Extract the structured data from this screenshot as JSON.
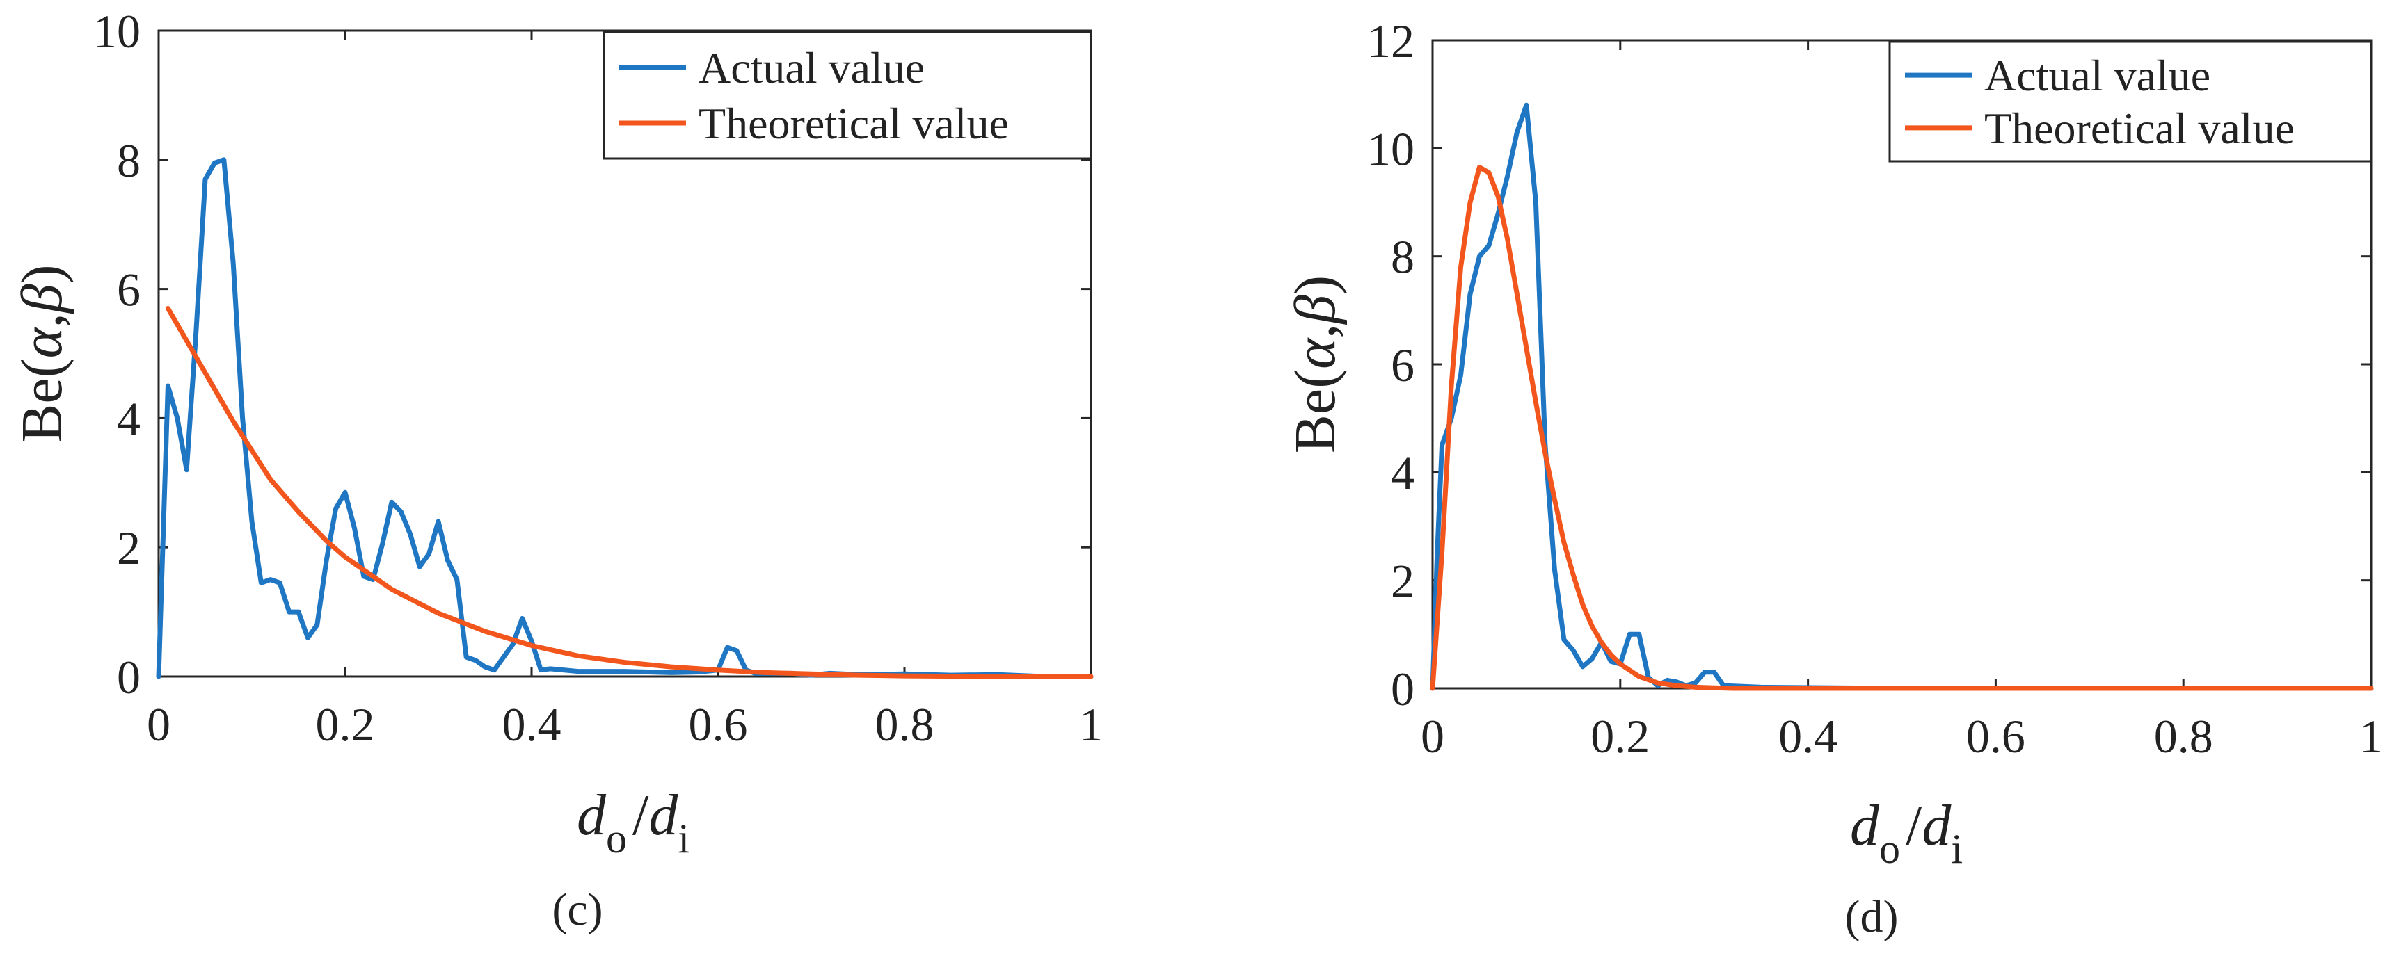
{
  "chart_data": [
    {
      "type": "line",
      "panel_label": "(c)",
      "xlabel": {
        "main": "d",
        "sub_o": "o",
        "slash": "/",
        "main2": "d",
        "sub_i": "i"
      },
      "ylabel": {
        "prefix": "Be(",
        "alpha": "α",
        "comma": ",",
        "beta": "β",
        "suffix": ")"
      },
      "xlim": [
        0,
        1
      ],
      "ylim": [
        0,
        10
      ],
      "xticks": [
        0,
        0.2,
        0.4,
        0.6,
        0.8,
        1
      ],
      "xtick_labels": [
        "0",
        "0.2",
        "0.4",
        "0.6",
        "0.8",
        "1"
      ],
      "yticks": [
        0,
        2,
        4,
        6,
        8,
        10
      ],
      "ytick_labels": [
        "0",
        "2",
        "4",
        "6",
        "8",
        "10"
      ],
      "legend_position": "top-right",
      "series": [
        {
          "name": "Actual value",
          "color": "#1f77c4",
          "x": [
            0,
            0.01,
            0.02,
            0.03,
            0.04,
            0.05,
            0.06,
            0.07,
            0.08,
            0.09,
            0.1,
            0.11,
            0.12,
            0.13,
            0.14,
            0.15,
            0.16,
            0.17,
            0.18,
            0.19,
            0.2,
            0.21,
            0.22,
            0.23,
            0.24,
            0.25,
            0.26,
            0.27,
            0.28,
            0.29,
            0.3,
            0.31,
            0.32,
            0.33,
            0.34,
            0.35,
            0.36,
            0.37,
            0.38,
            0.39,
            0.4,
            0.41,
            0.42,
            0.45,
            0.5,
            0.55,
            0.58,
            0.6,
            0.61,
            0.62,
            0.63,
            0.64,
            0.65,
            0.68,
            0.7,
            0.72,
            0.75,
            0.8,
            0.85,
            0.9,
            0.95,
            1.0
          ],
          "values": [
            0,
            4.5,
            4.0,
            3.2,
            5.3,
            7.7,
            7.95,
            8.0,
            6.4,
            4.0,
            2.4,
            1.45,
            1.5,
            1.45,
            1.0,
            1.0,
            0.6,
            0.8,
            1.8,
            2.6,
            2.85,
            2.3,
            1.55,
            1.5,
            2.05,
            2.7,
            2.55,
            2.2,
            1.7,
            1.9,
            2.4,
            1.8,
            1.5,
            0.3,
            0.25,
            0.15,
            0.1,
            0.3,
            0.5,
            0.9,
            0.55,
            0.1,
            0.12,
            0.08,
            0.08,
            0.06,
            0.07,
            0.1,
            0.45,
            0.4,
            0.1,
            0.05,
            0.05,
            0.05,
            0.02,
            0.05,
            0.03,
            0.04,
            0.02,
            0.03,
            0.0,
            0.0
          ]
        },
        {
          "name": "Theoretical value",
          "color": "#f2561d",
          "x": [
            0.01,
            0.03,
            0.05,
            0.08,
            0.1,
            0.12,
            0.15,
            0.18,
            0.2,
            0.25,
            0.3,
            0.35,
            0.4,
            0.45,
            0.5,
            0.55,
            0.6,
            0.65,
            0.7,
            0.75,
            0.8,
            0.9,
            1.0
          ],
          "values": [
            5.7,
            5.2,
            4.7,
            3.95,
            3.5,
            3.05,
            2.55,
            2.1,
            1.85,
            1.35,
            0.98,
            0.7,
            0.48,
            0.32,
            0.22,
            0.15,
            0.1,
            0.06,
            0.04,
            0.02,
            0.01,
            0.0,
            0.0
          ]
        }
      ]
    },
    {
      "type": "line",
      "panel_label": "(d)",
      "xlabel": {
        "main": "d",
        "sub_o": "o",
        "slash": "/",
        "main2": "d",
        "sub_i": "i"
      },
      "ylabel": {
        "prefix": "Be(",
        "alpha": "α",
        "comma": ",",
        "beta": "β",
        "suffix": ")"
      },
      "xlim": [
        0,
        1
      ],
      "ylim": [
        0,
        12
      ],
      "xticks": [
        0,
        0.2,
        0.4,
        0.6,
        0.8,
        1
      ],
      "xtick_labels": [
        "0",
        "0.2",
        "0.4",
        "0.6",
        "0.8",
        "1"
      ],
      "yticks": [
        0,
        2,
        4,
        6,
        8,
        10,
        12
      ],
      "ytick_labels": [
        "0",
        "2",
        "4",
        "6",
        "8",
        "10",
        "12"
      ],
      "legend_position": "top-right",
      "series": [
        {
          "name": "Actual value",
          "color": "#1f77c4",
          "x": [
            0,
            0.005,
            0.01,
            0.02,
            0.03,
            0.04,
            0.05,
            0.06,
            0.07,
            0.08,
            0.09,
            0.1,
            0.11,
            0.12,
            0.13,
            0.14,
            0.15,
            0.16,
            0.17,
            0.18,
            0.19,
            0.2,
            0.21,
            0.22,
            0.23,
            0.24,
            0.25,
            0.26,
            0.27,
            0.28,
            0.29,
            0.3,
            0.31,
            0.35,
            0.5,
            0.7,
            1.0
          ],
          "values": [
            0,
            2.5,
            4.5,
            5.0,
            5.8,
            7.3,
            8.0,
            8.2,
            8.8,
            9.5,
            10.3,
            10.8,
            9.0,
            4.5,
            2.2,
            0.9,
            0.7,
            0.4,
            0.55,
            0.85,
            0.5,
            0.45,
            1.0,
            1.0,
            0.2,
            0.05,
            0.15,
            0.12,
            0.05,
            0.1,
            0.3,
            0.3,
            0.05,
            0.02,
            0.0,
            0.0,
            0.0
          ]
        },
        {
          "name": "Theoretical value",
          "color": "#f2561d",
          "x": [
            0,
            0.01,
            0.02,
            0.03,
            0.04,
            0.05,
            0.06,
            0.07,
            0.08,
            0.09,
            0.1,
            0.11,
            0.12,
            0.13,
            0.14,
            0.15,
            0.16,
            0.17,
            0.18,
            0.19,
            0.2,
            0.22,
            0.24,
            0.26,
            0.28,
            0.3,
            0.32,
            0.35,
            0.4,
            0.5,
            0.7,
            1.0
          ],
          "values": [
            0,
            2.5,
            5.6,
            7.8,
            9.0,
            9.65,
            9.55,
            9.1,
            8.3,
            7.3,
            6.3,
            5.3,
            4.35,
            3.5,
            2.7,
            2.1,
            1.55,
            1.15,
            0.85,
            0.62,
            0.45,
            0.22,
            0.1,
            0.05,
            0.02,
            0.01,
            0.0,
            0.0,
            0.0,
            0.0,
            0.0,
            0.0
          ]
        }
      ]
    }
  ]
}
